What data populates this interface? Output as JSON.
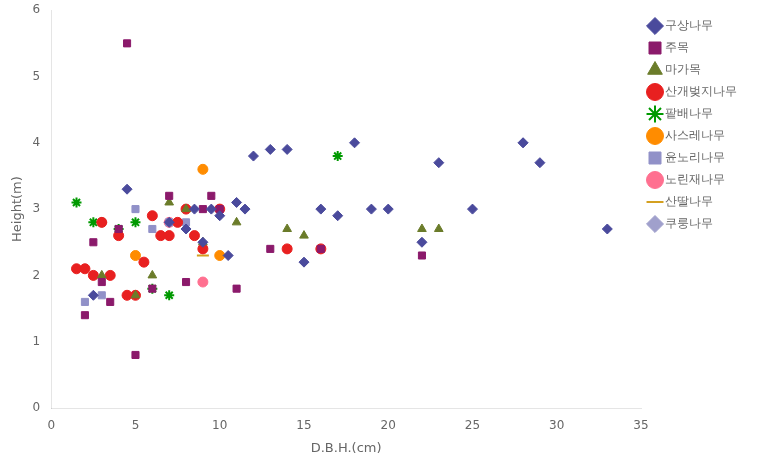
{
  "chart_data": {
    "type": "scatter",
    "xlabel": "D.B.H.(cm)",
    "ylabel": "Height(m)",
    "xlim": [
      0,
      35
    ],
    "ylim": [
      0,
      6
    ],
    "xticks": [
      0,
      5,
      10,
      15,
      20,
      25,
      30,
      35
    ],
    "yticks": [
      0,
      1,
      2,
      3,
      4,
      5,
      6
    ],
    "grid": false,
    "legend": "upper right",
    "series": [
      {
        "name": "구상나무",
        "color": "#4a4a9c",
        "marker": "diamond",
        "x": [
          2.5,
          4.5,
          7,
          8,
          8.5,
          9,
          9.5,
          10,
          10.5,
          11,
          11.5,
          12,
          13,
          14,
          15,
          16,
          17,
          18,
          19,
          20,
          22,
          23,
          25,
          28,
          29,
          33
        ],
        "y": [
          1.7,
          3.3,
          2.8,
          2.7,
          3.0,
          2.5,
          3.0,
          2.9,
          2.3,
          3.1,
          3.0,
          3.8,
          3.9,
          3.9,
          2.2,
          3.0,
          2.9,
          4.0,
          3.0,
          3.0,
          2.5,
          3.7,
          3.0,
          4.0,
          3.7,
          2.7
        ]
      },
      {
        "name": "주목",
        "color": "#8b1a6b",
        "marker": "square",
        "x": [
          2,
          2.5,
          3,
          3.5,
          4,
          4.5,
          5,
          6,
          7,
          8,
          9,
          9.5,
          10,
          11,
          13,
          16,
          22
        ],
        "y": [
          1.4,
          2.5,
          1.9,
          1.6,
          2.7,
          5.5,
          0.8,
          1.8,
          3.2,
          1.9,
          3.0,
          3.2,
          3.0,
          1.8,
          2.4,
          2.4,
          2.3
        ]
      },
      {
        "name": "마가목",
        "color": "#6b7c2a",
        "marker": "triangle",
        "x": [
          3,
          5,
          6,
          7,
          8,
          9,
          11,
          14,
          15,
          22,
          23
        ],
        "y": [
          2.0,
          1.7,
          2.0,
          3.1,
          3.0,
          2.5,
          2.8,
          2.7,
          2.6,
          2.7,
          2.7
        ]
      },
      {
        "name": "산개벚지나무",
        "color": "#e82020",
        "marker": "circle",
        "x": [
          1.5,
          2,
          2.5,
          3,
          3.5,
          4,
          4.5,
          5,
          5.5,
          6,
          6.5,
          7,
          7.5,
          8,
          8.5,
          9,
          10,
          14,
          16
        ],
        "y": [
          2.1,
          2.1,
          2.0,
          2.8,
          2.0,
          2.6,
          1.7,
          1.7,
          2.2,
          2.9,
          2.6,
          2.6,
          2.8,
          3.0,
          2.6,
          2.4,
          3.0,
          2.4,
          2.4
        ]
      },
      {
        "name": "팥배나무",
        "color": "#009900",
        "marker": "star",
        "x": [
          1.5,
          2.5,
          3,
          4,
          5,
          6,
          7,
          17
        ],
        "y": [
          3.1,
          2.8,
          2.8,
          2.7,
          2.8,
          1.8,
          1.7,
          3.8
        ]
      },
      {
        "name": "사스레나무",
        "color": "#ff8c00",
        "marker": "circle",
        "x": [
          5,
          9,
          10
        ],
        "y": [
          2.3,
          3.6,
          2.3
        ]
      },
      {
        "name": "윤노리나무",
        "color": "#9191c8",
        "marker": "square",
        "x": [
          2,
          3,
          4,
          5,
          6,
          7,
          8
        ],
        "y": [
          1.6,
          1.7,
          2.7,
          3.0,
          2.7,
          2.8,
          2.8
        ]
      },
      {
        "name": "노린재나무",
        "color": "#ff7090",
        "marker": "circle",
        "x": [
          7,
          9
        ],
        "y": [
          2.8,
          1.9
        ]
      },
      {
        "name": "산딸나무",
        "color": "#d4a020",
        "marker": "hline",
        "x": [
          9
        ],
        "y": [
          2.3
        ]
      },
      {
        "name": "쿠룽나무",
        "color": "#a0a0cc",
        "marker": "diamond",
        "x": [
          28
        ],
        "y": [
          4.0
        ]
      }
    ]
  }
}
